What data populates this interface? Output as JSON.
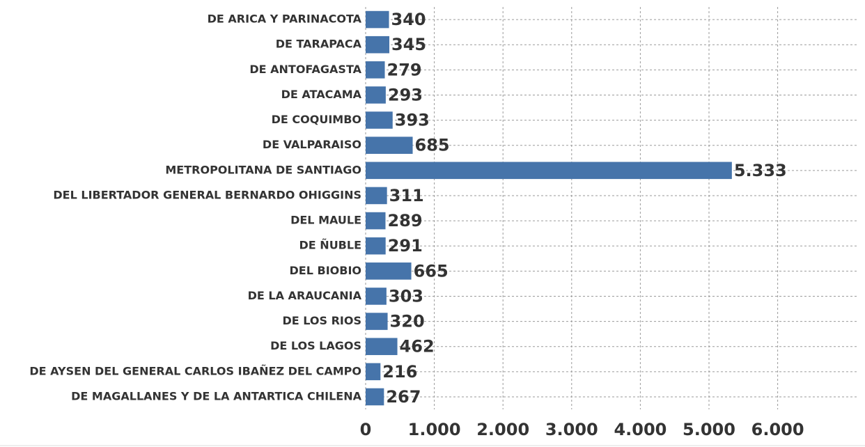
{
  "chart_data": {
    "type": "hbar",
    "categories": [
      "DE ARICA Y PARINACOTA",
      "DE TARAPACA",
      "DE ANTOFAGASTA",
      "DE ATACAMA",
      "DE COQUIMBO",
      "DE VALPARAISO",
      "METROPOLITANA DE SANTIAGO",
      "DEL LIBERTADOR GENERAL BERNARDO OHIGGINS",
      "DEL MAULE",
      "DE ÑUBLE",
      "DEL BIOBIO",
      "DE LA ARAUCANIA",
      "DE LOS RIOS",
      "DE LOS LAGOS",
      "DE AYSEN DEL GENERAL CARLOS IBAÑEZ DEL CAMPO",
      "DE MAGALLANES Y DE LA ANTARTICA CHILENA"
    ],
    "values": [
      340,
      345,
      279,
      293,
      393,
      685,
      5333,
      311,
      289,
      291,
      665,
      303,
      320,
      462,
      216,
      267
    ],
    "value_labels": [
      "340",
      "345",
      "279",
      "293",
      "393",
      "685",
      "5.333",
      "311",
      "289",
      "291",
      "665",
      "303",
      "320",
      "462",
      "216",
      "267"
    ],
    "color": "#4674aa",
    "xlim": [
      0,
      7150
    ],
    "xticks": [
      0,
      {
        "value": 1000,
        "label": "1.000"
      },
      {
        "value": 2000,
        "label": "2.000"
      },
      {
        "value": 3000,
        "label": "3.000"
      },
      {
        "value": 4000,
        "label": "4.000"
      },
      {
        "value": 5000,
        "label": "5.000"
      },
      {
        "value": 6000,
        "label": "6.000"
      }
    ],
    "grid": true
  }
}
